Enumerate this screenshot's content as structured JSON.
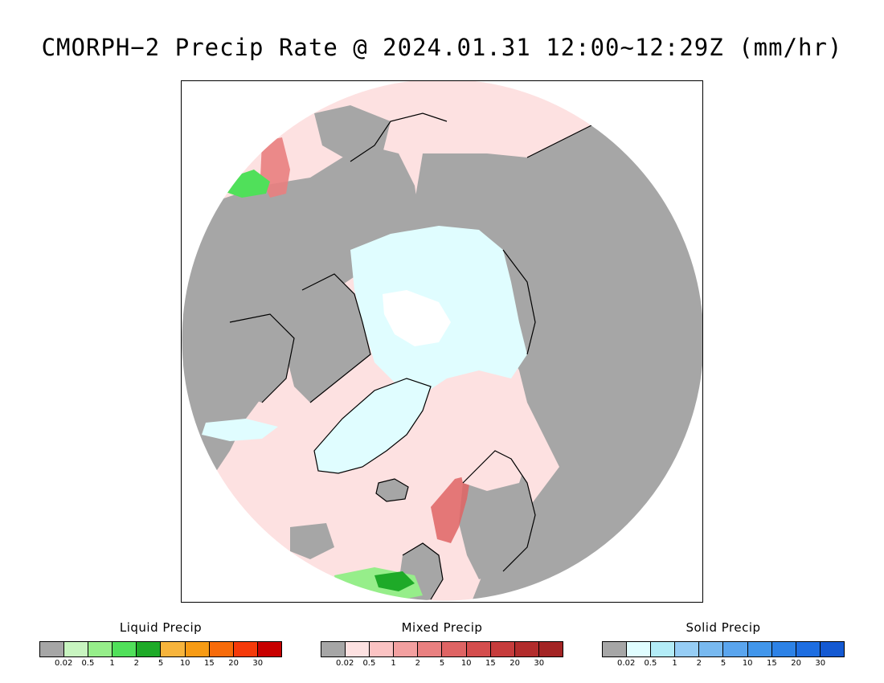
{
  "title": "CMORPH−2 Precip Rate @ 2024.01.31 12:00~12:29Z (mm/hr)",
  "colors": {
    "no_precip": "#a6a6a6",
    "background": "#ffffff",
    "coastline": "#000000"
  },
  "legends": [
    {
      "title": "Liquid Precip",
      "colors": [
        "#a6a6a6",
        "#c8f5c0",
        "#96ee8a",
        "#50e05a",
        "#1eaa28",
        "#f7b43c",
        "#f79b14",
        "#f76b0a",
        "#f53a0a",
        "#c80000"
      ],
      "ticks": [
        "0.02",
        "0.5",
        "1",
        "2",
        "5",
        "10",
        "15",
        "20",
        "30"
      ]
    },
    {
      "title": "Mixed Precip",
      "colors": [
        "#a6a6a6",
        "#fde1e1",
        "#fbc3c3",
        "#f3a0a0",
        "#e98080",
        "#df6464",
        "#d44d4d",
        "#c63c3c",
        "#b22c2c",
        "#a32424"
      ],
      "ticks": [
        "0.02",
        "0.5",
        "1",
        "2",
        "5",
        "10",
        "15",
        "20",
        "30"
      ]
    },
    {
      "title": "Solid Precip",
      "colors": [
        "#a6a6a6",
        "#e0fdff",
        "#b3ecf7",
        "#96cdf5",
        "#78b9f0",
        "#5aa5ee",
        "#4196eb",
        "#2d82e6",
        "#1e6ee1",
        "#1459d2"
      ],
      "ticks": [
        "0.02",
        "0.5",
        "1",
        "2",
        "5",
        "10",
        "15",
        "20",
        "30"
      ]
    }
  ]
}
